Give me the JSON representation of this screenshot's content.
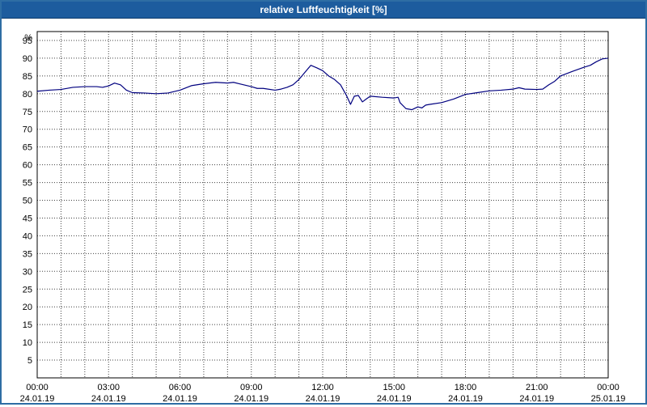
{
  "window": {
    "title": "relative Luftfeuchtigkeit [%]"
  },
  "chart_data": {
    "type": "line",
    "title": "relative Luftfeuchtigkeit [%]",
    "xlabel": "",
    "ylabel": "%",
    "ylim": [
      0,
      97.5
    ],
    "xlim_hours": [
      0,
      24
    ],
    "grid": {
      "x_minor_step_hours": 1,
      "y_step": 5,
      "style": "dotted"
    },
    "legend": "none",
    "yticks": [
      5,
      10,
      15,
      20,
      25,
      30,
      35,
      40,
      45,
      50,
      55,
      60,
      65,
      70,
      75,
      80,
      85,
      90,
      95
    ],
    "x_major_ticks_hours": [
      0,
      3,
      6,
      9,
      12,
      15,
      18,
      21,
      24
    ],
    "x_tick_labels": [
      {
        "time": "00:00",
        "date": "24.01.19"
      },
      {
        "time": "03:00",
        "date": "24.01.19"
      },
      {
        "time": "06:00",
        "date": "24.01.19"
      },
      {
        "time": "09:00",
        "date": "24.01.19"
      },
      {
        "time": "12:00",
        "date": "24.01.19"
      },
      {
        "time": "15:00",
        "date": "24.01.19"
      },
      {
        "time": "18:00",
        "date": "24.01.19"
      },
      {
        "time": "21:00",
        "date": "24.01.19"
      },
      {
        "time": "00:00",
        "date": "25.01.19"
      }
    ],
    "series": [
      {
        "name": "relative Luftfeuchtigkeit",
        "unit": "%",
        "color": "#00007f",
        "points": [
          [
            0.0,
            80.7
          ],
          [
            0.5,
            81.0
          ],
          [
            1.0,
            81.2
          ],
          [
            1.5,
            81.8
          ],
          [
            2.0,
            82.0
          ],
          [
            2.5,
            82.0
          ],
          [
            2.75,
            81.8
          ],
          [
            3.0,
            82.2
          ],
          [
            3.25,
            83.0
          ],
          [
            3.5,
            82.5
          ],
          [
            3.75,
            81.0
          ],
          [
            4.0,
            80.3
          ],
          [
            4.5,
            80.2
          ],
          [
            5.0,
            80.0
          ],
          [
            5.5,
            80.2
          ],
          [
            6.0,
            81.0
          ],
          [
            6.5,
            82.3
          ],
          [
            7.0,
            82.8
          ],
          [
            7.5,
            83.2
          ],
          [
            8.0,
            83.0
          ],
          [
            8.25,
            83.2
          ],
          [
            8.5,
            82.8
          ],
          [
            9.0,
            82.0
          ],
          [
            9.25,
            81.5
          ],
          [
            9.5,
            81.5
          ],
          [
            10.0,
            81.0
          ],
          [
            10.25,
            81.3
          ],
          [
            10.5,
            81.8
          ],
          [
            10.75,
            82.5
          ],
          [
            11.0,
            84.0
          ],
          [
            11.25,
            86.0
          ],
          [
            11.5,
            88.0
          ],
          [
            11.75,
            87.3
          ],
          [
            12.0,
            86.5
          ],
          [
            12.25,
            85.0
          ],
          [
            12.5,
            84.0
          ],
          [
            12.75,
            82.5
          ],
          [
            13.0,
            79.5
          ],
          [
            13.17,
            77.0
          ],
          [
            13.33,
            79.3
          ],
          [
            13.5,
            79.5
          ],
          [
            13.67,
            77.7
          ],
          [
            13.83,
            78.5
          ],
          [
            14.0,
            79.3
          ],
          [
            14.5,
            79.0
          ],
          [
            15.0,
            78.8
          ],
          [
            15.17,
            79.0
          ],
          [
            15.25,
            77.5
          ],
          [
            15.5,
            75.8
          ],
          [
            15.75,
            75.5
          ],
          [
            16.0,
            76.3
          ],
          [
            16.17,
            76.0
          ],
          [
            16.33,
            76.8
          ],
          [
            16.5,
            77.0
          ],
          [
            17.0,
            77.5
          ],
          [
            17.5,
            78.5
          ],
          [
            18.0,
            79.8
          ],
          [
            18.5,
            80.3
          ],
          [
            19.0,
            80.8
          ],
          [
            19.5,
            81.0
          ],
          [
            20.0,
            81.3
          ],
          [
            20.25,
            81.7
          ],
          [
            20.5,
            81.3
          ],
          [
            21.0,
            81.2
          ],
          [
            21.25,
            81.3
          ],
          [
            21.5,
            82.5
          ],
          [
            21.75,
            83.5
          ],
          [
            22.0,
            85.0
          ],
          [
            22.5,
            86.3
          ],
          [
            23.0,
            87.5
          ],
          [
            23.25,
            88.0
          ],
          [
            23.5,
            89.0
          ],
          [
            23.75,
            89.8
          ],
          [
            24.0,
            90.0
          ]
        ]
      }
    ]
  },
  "colors": {
    "titlebar": "#1d5c9e",
    "title_text": "#ffffff",
    "window_border": "#2e6da4",
    "plot_background": "#ffffff",
    "grid": "#404040",
    "axis_frame": "#000000",
    "line": "#00007f"
  }
}
